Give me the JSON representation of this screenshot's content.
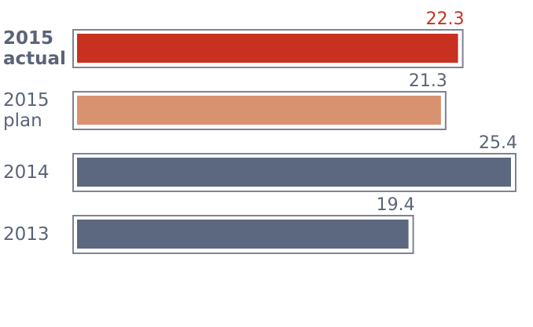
{
  "chart_data": {
    "type": "hbar",
    "categories": [
      "2015 actual",
      "2015 plan",
      "2014",
      "2013"
    ],
    "values": [
      22.3,
      21.3,
      25.4,
      19.4
    ],
    "colors": [
      "#c8301f",
      "#d9926f",
      "#5c6880",
      "#5c6880"
    ],
    "label_colors": [
      "#c8301f",
      "#5a6478",
      "#5a6478",
      "#5a6478"
    ]
  }
}
